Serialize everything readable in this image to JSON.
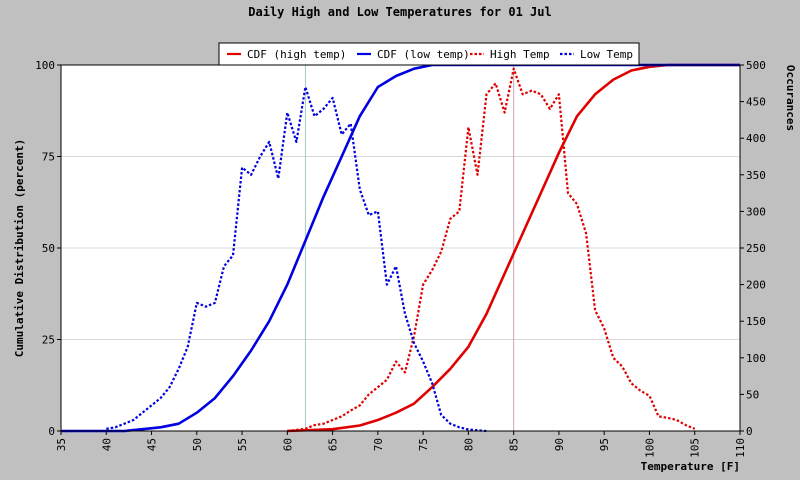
{
  "chart_data": {
    "type": "line",
    "title": "Daily High and Low Temperatures for 01 Jul",
    "xlabel": "Temperature [F]",
    "ylabel_left": "Cumulative Distribution (percent)",
    "ylabel_right": "Occurances",
    "xlim": [
      35,
      110
    ],
    "ylim_left": [
      0,
      100
    ],
    "ylim_right": [
      0,
      500
    ],
    "x_ticks": [
      35,
      40,
      45,
      50,
      55,
      60,
      65,
      70,
      75,
      80,
      85,
      90,
      95,
      100,
      105,
      110
    ],
    "y_left_ticks": [
      0,
      25,
      50,
      75,
      100
    ],
    "y_right_ticks": [
      0,
      50,
      100,
      150,
      200,
      250,
      300,
      350,
      400,
      450,
      500
    ],
    "grid": true,
    "legend_position": "top-center",
    "reference_lines_x": [
      62,
      85
    ],
    "colors": {
      "high": "#e00000",
      "low": "#0000e0",
      "background": "#c0c0c0",
      "plot": "#ffffff",
      "grid": "#d8d8d8"
    },
    "series": [
      {
        "name": "CDF (high temp)",
        "axis": "left",
        "style": "solid",
        "color": "#e00000",
        "x": [
          60,
          65,
          68,
          70,
          72,
          74,
          76,
          78,
          80,
          82,
          84,
          86,
          88,
          90,
          92,
          94,
          96,
          98,
          100,
          102,
          105,
          110
        ],
        "y": [
          0,
          0.5,
          1.5,
          3,
          5,
          7.5,
          12,
          17,
          23,
          32,
          43,
          54,
          65,
          76,
          86,
          92,
          96,
          98.5,
          99.5,
          100,
          100,
          100
        ]
      },
      {
        "name": "CDF (low temp)",
        "axis": "left",
        "style": "solid",
        "color": "#0000e0",
        "x": [
          35,
          40,
          42,
          44,
          46,
          48,
          50,
          52,
          54,
          56,
          58,
          60,
          62,
          64,
          66,
          68,
          70,
          72,
          74,
          76,
          80,
          85,
          90,
          110
        ],
        "y": [
          0,
          0,
          0,
          0.5,
          1,
          2,
          5,
          9,
          15,
          22,
          30,
          40,
          52,
          64,
          75,
          86,
          94,
          97,
          99,
          100,
          100,
          100,
          100,
          100
        ]
      },
      {
        "name": "High Temp",
        "axis": "right",
        "style": "dotted",
        "color": "#e00000",
        "x": [
          60,
          62,
          63,
          64,
          65,
          66,
          67,
          68,
          69,
          70,
          71,
          72,
          73,
          74,
          75,
          76,
          77,
          78,
          79,
          80,
          81,
          82,
          83,
          84,
          85,
          86,
          87,
          88,
          89,
          90,
          91,
          92,
          93,
          94,
          95,
          96,
          97,
          98,
          99,
          100,
          101,
          102,
          103,
          104,
          105
        ],
        "y": [
          0,
          3,
          8,
          10,
          15,
          20,
          28,
          35,
          50,
          60,
          70,
          95,
          80,
          130,
          200,
          220,
          245,
          290,
          300,
          415,
          350,
          460,
          475,
          435,
          495,
          460,
          465,
          460,
          440,
          460,
          325,
          310,
          270,
          165,
          140,
          100,
          88,
          65,
          55,
          48,
          20,
          18,
          15,
          8,
          3
        ]
      },
      {
        "name": "Low Temp",
        "axis": "right",
        "style": "dotted",
        "color": "#0000e0",
        "x": [
          40,
          41,
          42,
          43,
          44,
          45,
          46,
          47,
          48,
          49,
          50,
          51,
          52,
          53,
          54,
          55,
          56,
          57,
          58,
          59,
          60,
          61,
          62,
          63,
          64,
          65,
          66,
          67,
          68,
          69,
          70,
          71,
          72,
          73,
          74,
          75,
          76,
          77,
          78,
          79,
          80,
          81,
          82
        ],
        "y": [
          3,
          5,
          10,
          15,
          25,
          35,
          45,
          60,
          85,
          115,
          175,
          170,
          175,
          225,
          240,
          360,
          350,
          375,
          395,
          345,
          435,
          395,
          470,
          430,
          440,
          455,
          405,
          420,
          330,
          295,
          300,
          200,
          225,
          160,
          120,
          95,
          65,
          22,
          10,
          5,
          2,
          1,
          0
        ]
      }
    ]
  }
}
